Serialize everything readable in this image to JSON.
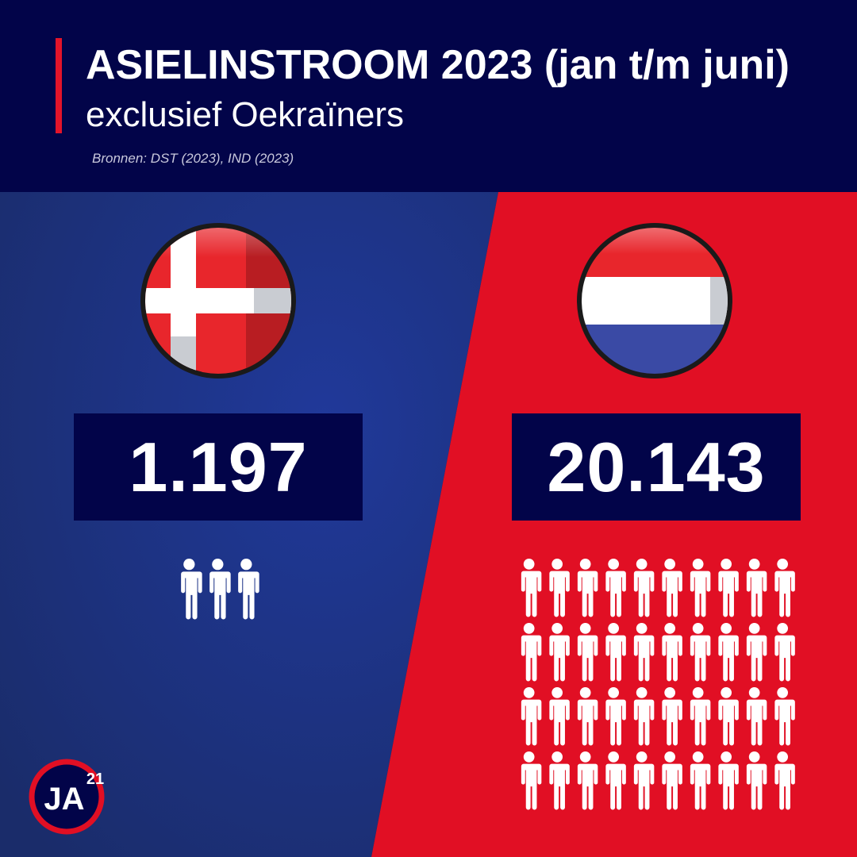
{
  "header": {
    "title": "ASIELINSTROOM 2023 (jan t/m juni)",
    "subtitle": "exclusief Oekraïners",
    "sources": "Bronnen: DST (2023), IND (2023)"
  },
  "countries": [
    {
      "flag_icon": "denmark-flag-icon",
      "value": "1.197",
      "people_icons": 3,
      "panel_color": "#1e3480"
    },
    {
      "flag_icon": "netherlands-flag-icon",
      "value": "20.143",
      "people_icons": 40,
      "panel_color": "#e10f24"
    }
  ],
  "logo": {
    "text": "JA",
    "superscript": "21"
  },
  "colors": {
    "navy": "#020449",
    "red": "#e10f24",
    "blue": "#1e3480",
    "white": "#ffffff"
  }
}
